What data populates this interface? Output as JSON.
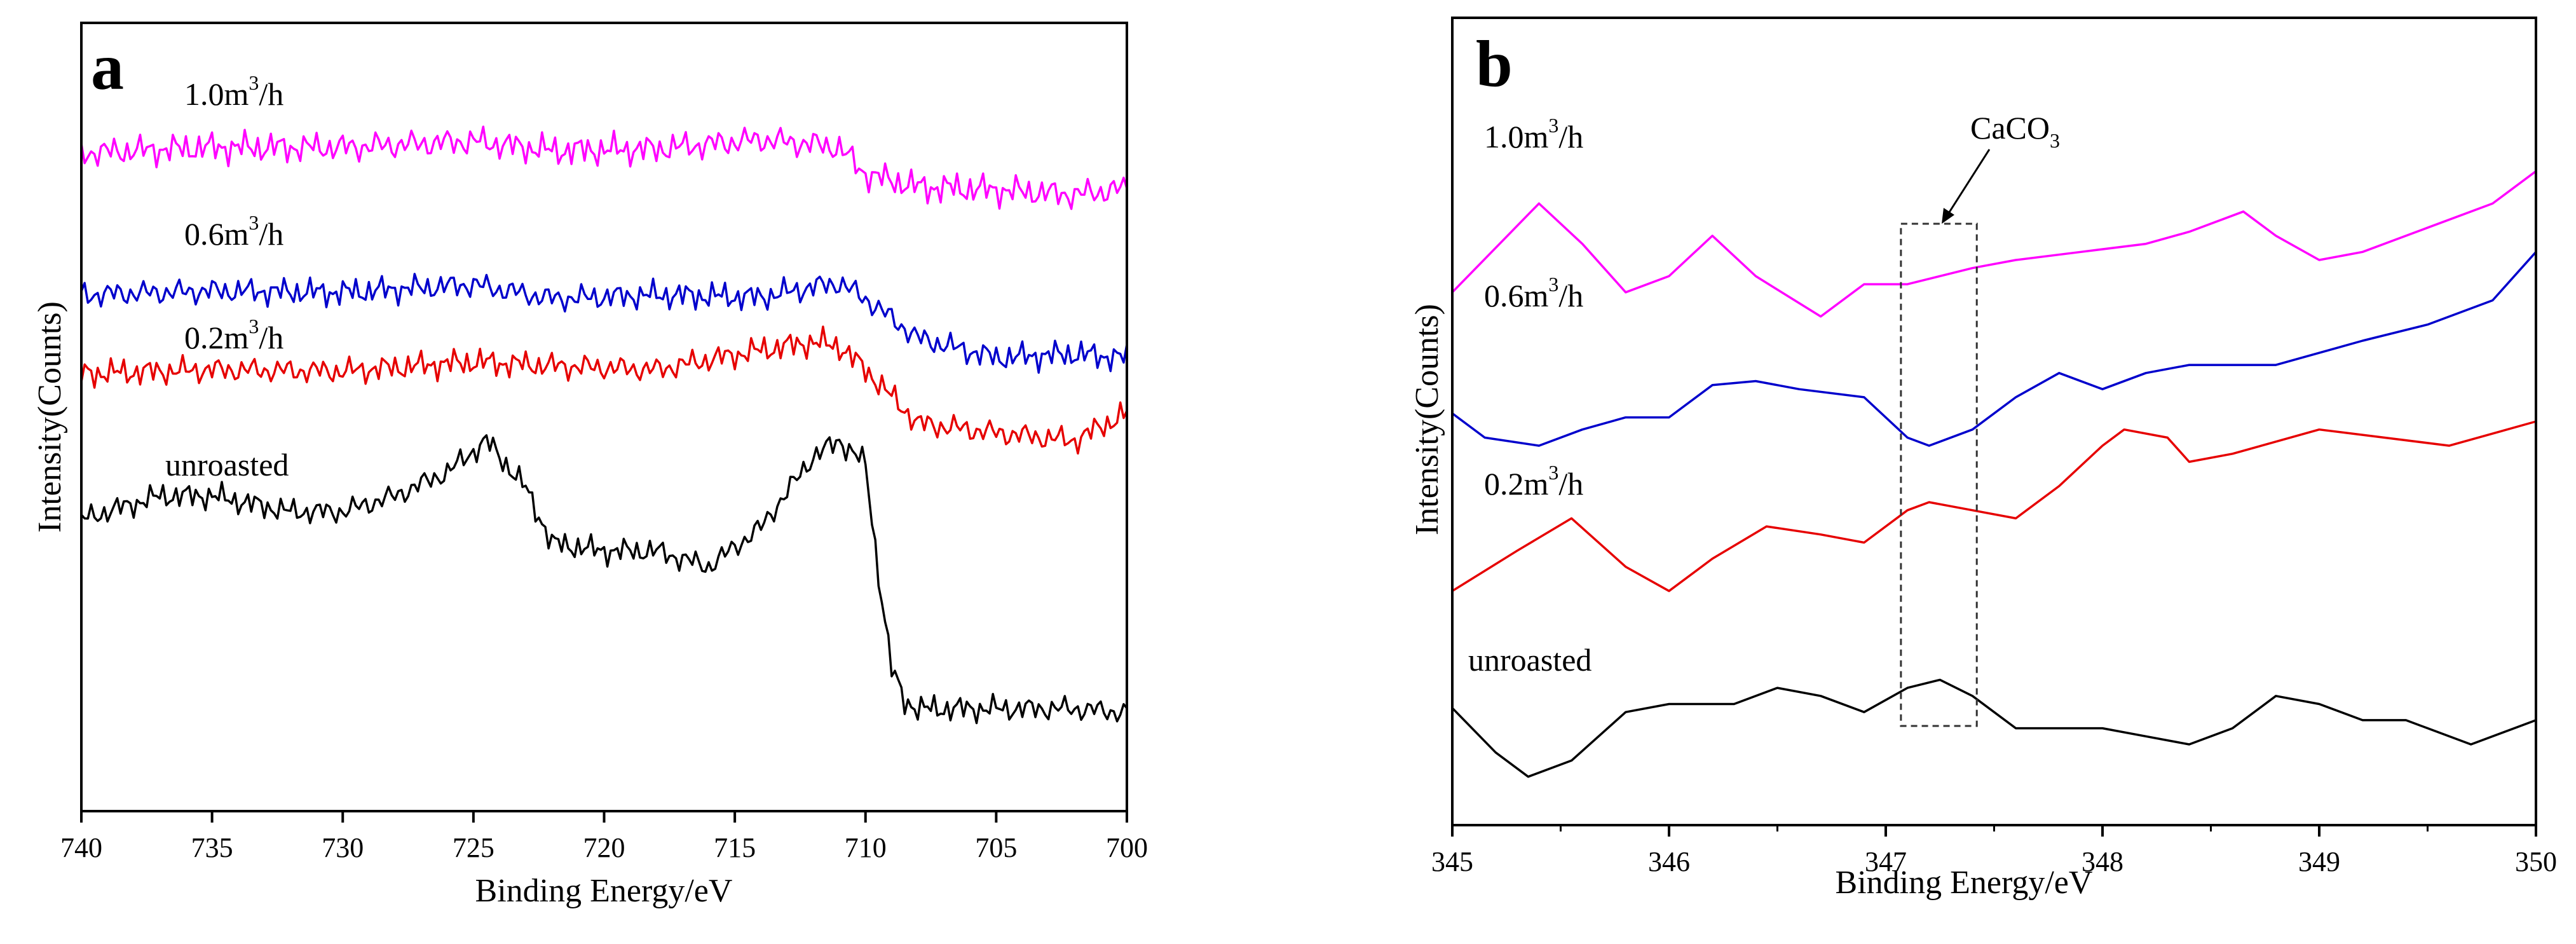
{
  "chart_data": [
    {
      "panel": "a",
      "type": "line",
      "title": "",
      "xlabel": "Binding Energy/eV",
      "ylabel": "Intensity(Counts)",
      "xlim": [
        740,
        700
      ],
      "x_reversed": true,
      "xticks": [
        "740",
        "735",
        "730",
        "725",
        "720",
        "715",
        "710",
        "705",
        "700"
      ],
      "ylim": [
        0,
        1
      ],
      "yticks": [],
      "grid": false,
      "legend": "none",
      "series": [
        {
          "name": "1.0m³/h",
          "label_base": "1.0m",
          "label_sup": "3",
          "label_tail": "/h",
          "color": "#ff00ff",
          "x": [
            740,
            735,
            730,
            725,
            722,
            718,
            714,
            712,
            711,
            710,
            708,
            705,
            702,
            700
          ],
          "values": [
            0.835,
            0.842,
            0.842,
            0.85,
            0.838,
            0.84,
            0.852,
            0.846,
            0.842,
            0.808,
            0.792,
            0.788,
            0.782,
            0.79
          ]
        },
        {
          "name": "0.6m³/h",
          "label_base": "0.6m",
          "label_sup": "3",
          "label_tail": "/h",
          "color": "#0000cc",
          "x": [
            740,
            735,
            730,
            725,
            722,
            718,
            714,
            712,
            711,
            710,
            708,
            705,
            702,
            700
          ],
          "values": [
            0.655,
            0.66,
            0.658,
            0.668,
            0.65,
            0.655,
            0.652,
            0.665,
            0.67,
            0.65,
            0.6,
            0.575,
            0.58,
            0.575
          ]
        },
        {
          "name": "0.2m³/h",
          "label_base": "0.2m",
          "label_sup": "3",
          "label_tail": "/h",
          "color": "#e60000",
          "x": [
            740,
            735,
            730,
            725,
            722,
            718,
            714,
            712,
            711,
            710,
            708,
            705,
            702,
            700
          ],
          "values": [
            0.555,
            0.56,
            0.558,
            0.57,
            0.565,
            0.56,
            0.585,
            0.595,
            0.59,
            0.56,
            0.492,
            0.48,
            0.47,
            0.505
          ]
        },
        {
          "name": "unroasted",
          "label_base": "unroasted",
          "label_sup": "",
          "label_tail": "",
          "color": "#000000",
          "x": [
            740,
            737,
            735,
            732,
            730,
            728,
            726,
            724.5,
            723,
            722,
            720,
            718,
            716,
            714,
            712,
            711,
            710,
            709.5,
            709,
            708.5,
            708,
            705,
            702,
            700
          ],
          "values": [
            0.37,
            0.4,
            0.4,
            0.38,
            0.38,
            0.4,
            0.43,
            0.47,
            0.41,
            0.34,
            0.33,
            0.33,
            0.31,
            0.36,
            0.45,
            0.47,
            0.44,
            0.3,
            0.18,
            0.14,
            0.13,
            0.13,
            0.13,
            0.125
          ]
        }
      ]
    },
    {
      "panel": "b",
      "type": "line",
      "title": "",
      "xlabel": "Binding Energy/eV",
      "ylabel": "Intensity(Counts)",
      "xlim": [
        345,
        350
      ],
      "x_reversed": false,
      "xticks": [
        "345",
        "346",
        "347",
        "348",
        "349",
        "350"
      ],
      "ylim": [
        0,
        1
      ],
      "yticks": [],
      "grid": false,
      "legend": "none",
      "annotation": {
        "label_base": "CaCO",
        "label_sub": "3",
        "x_range": [
          347.07,
          347.42
        ]
      },
      "series": [
        {
          "name": "1.0m³/h",
          "label_base": "1.0m",
          "label_sup": "3",
          "label_tail": "/h",
          "color": "#ff00ff",
          "x": [
            345.0,
            345.4,
            345.6,
            345.8,
            346.0,
            346.2,
            346.4,
            346.7,
            346.9,
            347.1,
            347.4,
            347.6,
            347.9,
            348.2,
            348.4,
            348.65,
            348.8,
            349.0,
            349.2,
            349.5,
            349.8,
            350.0
          ],
          "values": [
            0.66,
            0.77,
            0.72,
            0.66,
            0.68,
            0.73,
            0.68,
            0.63,
            0.67,
            0.67,
            0.69,
            0.7,
            0.71,
            0.72,
            0.735,
            0.76,
            0.73,
            0.7,
            0.71,
            0.74,
            0.77,
            0.81
          ]
        },
        {
          "name": "0.6m³/h",
          "label_base": "0.6m",
          "label_sup": "3",
          "label_tail": "/h",
          "color": "#0000cc",
          "x": [
            345.0,
            345.15,
            345.4,
            345.6,
            345.8,
            346.0,
            346.2,
            346.4,
            346.6,
            346.9,
            347.1,
            347.2,
            347.4,
            347.6,
            347.8,
            348.0,
            348.2,
            348.4,
            348.8,
            349.0,
            349.2,
            349.5,
            349.8,
            350.0
          ],
          "values": [
            0.51,
            0.48,
            0.47,
            0.49,
            0.505,
            0.505,
            0.545,
            0.55,
            0.54,
            0.53,
            0.48,
            0.47,
            0.49,
            0.53,
            0.56,
            0.54,
            0.56,
            0.57,
            0.57,
            0.585,
            0.6,
            0.62,
            0.65,
            0.71
          ]
        },
        {
          "name": "0.2m³/h",
          "label_base": "0.2m",
          "label_sup": "3",
          "label_tail": "/h",
          "color": "#e60000",
          "x": [
            345.0,
            345.3,
            345.55,
            345.8,
            346.0,
            346.2,
            346.45,
            346.7,
            346.9,
            347.1,
            347.2,
            347.4,
            347.6,
            347.8,
            348.0,
            348.1,
            348.3,
            348.4,
            348.6,
            349.0,
            349.3,
            349.6,
            350.0
          ],
          "values": [
            0.29,
            0.34,
            0.38,
            0.32,
            0.29,
            0.33,
            0.37,
            0.36,
            0.35,
            0.39,
            0.4,
            0.39,
            0.38,
            0.42,
            0.47,
            0.49,
            0.48,
            0.45,
            0.46,
            0.49,
            0.48,
            0.47,
            0.5
          ]
        },
        {
          "name": "unroasted",
          "label_base": "unroasted",
          "label_sup": "",
          "label_tail": "",
          "color": "#000000",
          "x": [
            345.0,
            345.2,
            345.35,
            345.55,
            345.8,
            346.0,
            346.3,
            346.5,
            346.7,
            346.9,
            347.1,
            347.25,
            347.4,
            347.6,
            347.8,
            348.0,
            348.2,
            348.4,
            348.6,
            348.8,
            349.0,
            349.2,
            349.4,
            349.7,
            350.0
          ],
          "values": [
            0.145,
            0.09,
            0.06,
            0.08,
            0.14,
            0.15,
            0.15,
            0.17,
            0.16,
            0.14,
            0.17,
            0.18,
            0.16,
            0.12,
            0.12,
            0.12,
            0.11,
            0.1,
            0.12,
            0.16,
            0.15,
            0.13,
            0.13,
            0.1,
            0.13
          ]
        }
      ]
    }
  ]
}
